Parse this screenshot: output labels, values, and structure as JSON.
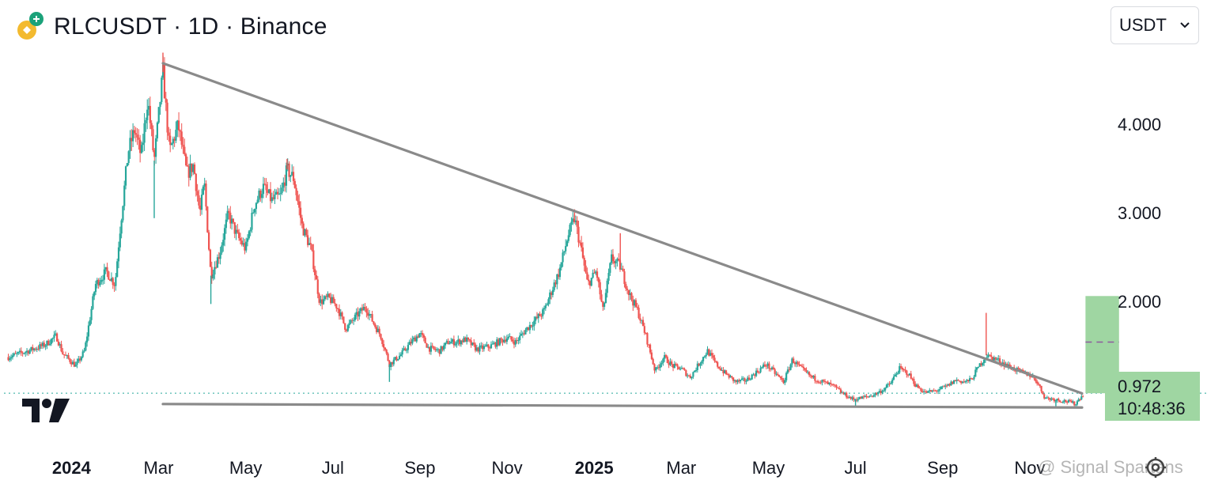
{
  "header": {
    "title": "RLCUSDT · 1D · Binance",
    "coin_icon": "rlc-coin-icon"
  },
  "currency_select": {
    "value": "USDT",
    "icon": "chevron-down-icon"
  },
  "price_tag": {
    "price": "0.972",
    "countdown": "10:48:36"
  },
  "watermark": "@ Signal Spartans",
  "colors": {
    "up": "#26a69a",
    "down": "#ef5350",
    "trendline": "#8a8a8a",
    "target_box": "#9fd6a2",
    "target_dash": "#8e5a9e",
    "last_price_line": "#26a69a"
  },
  "chart_data": {
    "type": "candlestick",
    "title": "RLCUSDT · 1D · Binance",
    "ylim": [
      0.75,
      4.95
    ],
    "y_ticks": [
      "4.000",
      "3.000",
      "2.000"
    ],
    "y_tick_values": [
      4.0,
      3.0,
      2.0
    ],
    "x_ticks": [
      {
        "label": "2024",
        "t": 0,
        "year": true
      },
      {
        "label": "Mar",
        "t": 2.0
      },
      {
        "label": "May",
        "t": 4.0
      },
      {
        "label": "Jul",
        "t": 6.0
      },
      {
        "label": "Sep",
        "t": 8.0
      },
      {
        "label": "Nov",
        "t": 10.0
      },
      {
        "label": "2025",
        "t": 12.0,
        "year": true
      },
      {
        "label": "Mar",
        "t": 14.0
      },
      {
        "label": "May",
        "t": 16.0
      },
      {
        "label": "Jul",
        "t": 18.0
      },
      {
        "label": "Sep",
        "t": 20.0
      },
      {
        "label": "Nov",
        "t": 22.0
      }
    ],
    "t_range": [
      -1.55,
      23.6
    ],
    "price_path": [
      [
        -1.45,
        1.38
      ],
      [
        -1.0,
        1.45
      ],
      [
        -0.6,
        1.52
      ],
      [
        -0.35,
        1.62
      ],
      [
        -0.2,
        1.42
      ],
      [
        0.1,
        1.28
      ],
      [
        0.3,
        1.45
      ],
      [
        0.55,
        2.2
      ],
      [
        0.8,
        2.35
      ],
      [
        1.0,
        2.2
      ],
      [
        1.1,
        2.75
      ],
      [
        1.3,
        3.7
      ],
      [
        1.45,
        3.95
      ],
      [
        1.6,
        3.65
      ],
      [
        1.75,
        4.3
      ],
      [
        1.9,
        3.6
      ],
      [
        2.1,
        4.6
      ],
      [
        2.25,
        3.7
      ],
      [
        2.45,
        4.0
      ],
      [
        2.65,
        3.45
      ],
      [
        2.8,
        3.55
      ],
      [
        2.95,
        3.0
      ],
      [
        3.05,
        3.35
      ],
      [
        3.2,
        2.3
      ],
      [
        3.4,
        2.55
      ],
      [
        3.6,
        3.0
      ],
      [
        3.8,
        2.75
      ],
      [
        4.0,
        2.6
      ],
      [
        4.2,
        3.1
      ],
      [
        4.4,
        3.3
      ],
      [
        4.6,
        3.15
      ],
      [
        4.8,
        3.2
      ],
      [
        4.95,
        3.5
      ],
      [
        5.1,
        3.4
      ],
      [
        5.3,
        2.85
      ],
      [
        5.5,
        2.6
      ],
      [
        5.7,
        2.0
      ],
      [
        5.9,
        2.05
      ],
      [
        6.1,
        1.95
      ],
      [
        6.3,
        1.7
      ],
      [
        6.55,
        1.85
      ],
      [
        6.75,
        1.95
      ],
      [
        6.95,
        1.75
      ],
      [
        7.1,
        1.62
      ],
      [
        7.3,
        1.3
      ],
      [
        7.55,
        1.4
      ],
      [
        7.8,
        1.55
      ],
      [
        8.0,
        1.65
      ],
      [
        8.2,
        1.48
      ],
      [
        8.45,
        1.45
      ],
      [
        8.65,
        1.55
      ],
      [
        8.85,
        1.55
      ],
      [
        9.05,
        1.58
      ],
      [
        9.3,
        1.47
      ],
      [
        9.6,
        1.5
      ],
      [
        9.8,
        1.55
      ],
      [
        10.0,
        1.6
      ],
      [
        10.2,
        1.55
      ],
      [
        10.45,
        1.7
      ],
      [
        10.65,
        1.8
      ],
      [
        10.85,
        1.9
      ],
      [
        11.0,
        2.1
      ],
      [
        11.2,
        2.35
      ],
      [
        11.4,
        2.75
      ],
      [
        11.55,
        2.95
      ],
      [
        11.7,
        2.6
      ],
      [
        11.85,
        2.2
      ],
      [
        12.05,
        2.35
      ],
      [
        12.2,
        1.9
      ],
      [
        12.4,
        2.5
      ],
      [
        12.6,
        2.4
      ],
      [
        12.8,
        2.1
      ],
      [
        13.0,
        1.9
      ],
      [
        13.2,
        1.6
      ],
      [
        13.4,
        1.22
      ],
      [
        13.6,
        1.38
      ],
      [
        13.8,
        1.28
      ],
      [
        14.0,
        1.25
      ],
      [
        14.2,
        1.15
      ],
      [
        14.4,
        1.3
      ],
      [
        14.6,
        1.45
      ],
      [
        14.8,
        1.3
      ],
      [
        15.0,
        1.2
      ],
      [
        15.25,
        1.1
      ],
      [
        15.5,
        1.12
      ],
      [
        15.7,
        1.2
      ],
      [
        15.95,
        1.3
      ],
      [
        16.15,
        1.2
      ],
      [
        16.35,
        1.1
      ],
      [
        16.55,
        1.35
      ],
      [
        16.75,
        1.25
      ],
      [
        17.0,
        1.15
      ],
      [
        17.25,
        1.1
      ],
      [
        17.5,
        1.05
      ],
      [
        17.7,
        0.97
      ],
      [
        17.95,
        0.9
      ],
      [
        18.15,
        0.92
      ],
      [
        18.4,
        0.95
      ],
      [
        18.6,
        1.0
      ],
      [
        18.8,
        1.08
      ],
      [
        19.0,
        1.25
      ],
      [
        19.2,
        1.2
      ],
      [
        19.4,
        1.05
      ],
      [
        19.6,
        0.98
      ],
      [
        19.85,
        1.0
      ],
      [
        20.1,
        1.05
      ],
      [
        20.3,
        1.12
      ],
      [
        20.5,
        1.1
      ],
      [
        20.65,
        1.12
      ],
      [
        20.8,
        1.25
      ],
      [
        21.0,
        1.4
      ],
      [
        21.25,
        1.35
      ],
      [
        21.5,
        1.28
      ],
      [
        21.75,
        1.22
      ],
      [
        22.0,
        1.18
      ],
      [
        22.15,
        1.12
      ],
      [
        22.35,
        0.92
      ],
      [
        22.6,
        0.9
      ],
      [
        22.85,
        0.88
      ],
      [
        23.05,
        0.85
      ],
      [
        23.15,
        0.92
      ],
      [
        23.25,
        0.972
      ]
    ],
    "wicks": [
      {
        "t": 2.1,
        "high": 4.82
      },
      {
        "t": 1.9,
        "low": 2.95
      },
      {
        "t": 3.2,
        "low": 1.98
      },
      {
        "t": 4.95,
        "high": 3.62
      },
      {
        "t": 7.3,
        "low": 1.1
      },
      {
        "t": 11.55,
        "high": 3.05
      },
      {
        "t": 12.6,
        "high": 2.78
      },
      {
        "t": 21.0,
        "high": 1.88
      },
      {
        "t": 18.0,
        "low": 0.82
      },
      {
        "t": 22.6,
        "low": 0.81
      }
    ],
    "last_price": 0.972,
    "trendlines": [
      {
        "from": {
          "t": 2.1,
          "price": 4.7
        },
        "to": {
          "t": 23.2,
          "price": 0.97
        }
      },
      {
        "from": {
          "t": 2.1,
          "price": 0.85
        },
        "to": {
          "t": 23.2,
          "price": 0.81
        }
      }
    ],
    "target_box": {
      "t_start": 23.28,
      "t_end": 24.05,
      "price_low": 0.972,
      "price_high": 2.07,
      "target_mid": 1.55
    }
  }
}
